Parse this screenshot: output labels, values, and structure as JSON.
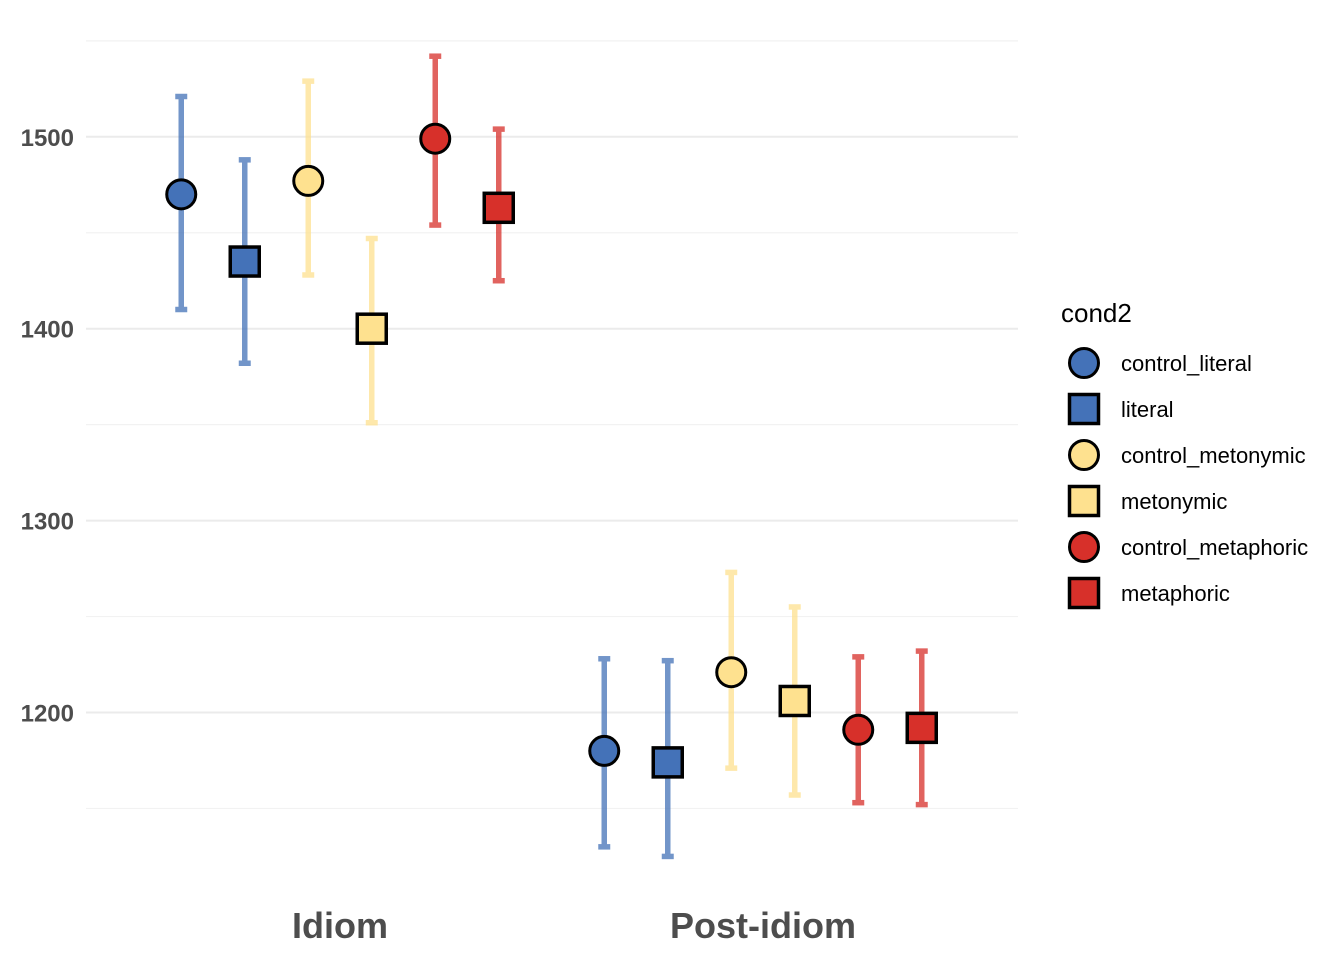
{
  "chart_data": {
    "type": "scatter",
    "title": "",
    "xlabel": "",
    "ylabel": "",
    "categories": [
      "Idiom",
      "Post-idiom"
    ],
    "ylim": [
      1117,
      1568
    ],
    "yticks": [
      1200,
      1300,
      1400,
      1500
    ],
    "grid": true,
    "legend": {
      "title": "cond2",
      "position": "right"
    },
    "series": [
      {
        "name": "control_literal",
        "color": "#4472b8",
        "marker": "circle",
        "values": [
          1470,
          1180
        ],
        "ci_low": [
          1410,
          1130
        ],
        "ci_high": [
          1521,
          1228
        ]
      },
      {
        "name": "literal",
        "color": "#4472b8",
        "marker": "square",
        "values": [
          1435,
          1174
        ],
        "ci_low": [
          1382,
          1125
        ],
        "ci_high": [
          1488,
          1227
        ]
      },
      {
        "name": "control_metonymic",
        "color": "#fee18f",
        "marker": "circle",
        "values": [
          1477,
          1221
        ],
        "ci_low": [
          1428,
          1171
        ],
        "ci_high": [
          1529,
          1273
        ]
      },
      {
        "name": "metonymic",
        "color": "#fee18f",
        "marker": "square",
        "values": [
          1400,
          1206
        ],
        "ci_low": [
          1351,
          1157
        ],
        "ci_high": [
          1447,
          1255
        ]
      },
      {
        "name": "control_metaphoric",
        "color": "#d7302a",
        "marker": "circle",
        "values": [
          1499,
          1191
        ],
        "ci_low": [
          1454,
          1153
        ],
        "ci_high": [
          1542,
          1229
        ]
      },
      {
        "name": "metaphoric",
        "color": "#d7302a",
        "marker": "square",
        "values": [
          1463,
          1192
        ],
        "ci_low": [
          1425,
          1152
        ],
        "ci_high": [
          1504,
          1232
        ]
      }
    ]
  }
}
